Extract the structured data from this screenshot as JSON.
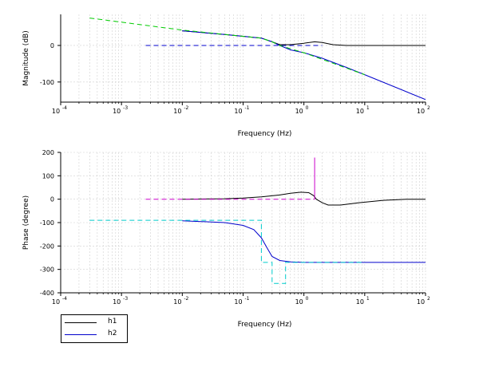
{
  "chart_data": [
    {
      "type": "line",
      "title": "",
      "xlabel": "Frequency (Hz)",
      "ylabel": "Magnitude (dB)",
      "xscale": "log",
      "xlim": [
        0.0001,
        100
      ],
      "ylim": [
        -155,
        85
      ],
      "xticks": [
        {
          "base": "10",
          "exp": "-4"
        },
        {
          "base": "10",
          "exp": "-3"
        },
        {
          "base": "10",
          "exp": "-2"
        },
        {
          "base": "10",
          "exp": "-1"
        },
        {
          "base": "10",
          "exp": "0"
        },
        {
          "base": "10",
          "exp": "1"
        },
        {
          "base": "10",
          "exp": "2"
        }
      ],
      "yticks": [
        "0",
        "-100"
      ],
      "grid": true,
      "series": [
        {
          "name": "h1",
          "color": "#000000",
          "style": "solid",
          "x": [
            0.01,
            0.05,
            0.1,
            0.15,
            0.2,
            0.3,
            0.4,
            0.6,
            1.0,
            1.5,
            2.0,
            3.0,
            5.0,
            10,
            100
          ],
          "y": [
            40,
            30,
            25,
            22,
            20,
            10,
            2,
            2,
            6,
            10,
            8,
            2,
            0,
            0,
            0
          ]
        },
        {
          "name": "h2",
          "color": "#0000cc",
          "style": "solid",
          "x": [
            0.01,
            0.05,
            0.1,
            0.15,
            0.2,
            0.3,
            0.4,
            0.6,
            1.0,
            2.0,
            5.0,
            10,
            100
          ],
          "y": [
            40,
            30,
            25,
            22,
            20,
            10,
            0,
            -12,
            -20,
            -35,
            -60,
            -80,
            -148
          ]
        },
        {
          "name": "",
          "color": "#00cc00",
          "style": "dashed",
          "x": [
            0.0003,
            0.01,
            0.1,
            0.2,
            0.3,
            0.4,
            1.0,
            10
          ],
          "y": [
            75,
            42,
            25,
            20,
            10,
            0,
            -20,
            -80
          ]
        },
        {
          "name": "",
          "color": "#0000cc",
          "style": "dashed",
          "x": [
            0.0025,
            2.0
          ],
          "y": [
            0,
            0
          ]
        }
      ]
    },
    {
      "type": "line",
      "title": "",
      "xlabel": "Frequency (Hz)",
      "ylabel": "Phase (degree)",
      "xscale": "log",
      "xlim": [
        0.0001,
        100
      ],
      "ylim": [
        -400,
        200
      ],
      "xticks": [
        {
          "base": "10",
          "exp": "-4"
        },
        {
          "base": "10",
          "exp": "-3"
        },
        {
          "base": "10",
          "exp": "-2"
        },
        {
          "base": "10",
          "exp": "-1"
        },
        {
          "base": "10",
          "exp": "0"
        },
        {
          "base": "10",
          "exp": "1"
        },
        {
          "base": "10",
          "exp": "2"
        }
      ],
      "yticks": [
        "200",
        "100",
        "0",
        "-100",
        "-200",
        "-300",
        "-400"
      ],
      "grid": true,
      "series": [
        {
          "name": "h1",
          "color": "#000000",
          "style": "solid",
          "x": [
            0.01,
            0.05,
            0.1,
            0.2,
            0.4,
            0.6,
            0.9,
            1.2,
            1.45,
            1.6,
            2.0,
            2.5,
            4,
            8,
            20,
            50,
            100
          ],
          "y": [
            0,
            2,
            5,
            10,
            18,
            25,
            30,
            28,
            15,
            0,
            -15,
            -25,
            -25,
            -15,
            -5,
            0,
            0
          ]
        },
        {
          "name": "h2",
          "color": "#0000cc",
          "style": "solid",
          "x": [
            0.01,
            0.05,
            0.1,
            0.15,
            0.2,
            0.25,
            0.3,
            0.4,
            0.6,
            1.0,
            2.0,
            10,
            100
          ],
          "y": [
            -92,
            -100,
            -112,
            -130,
            -165,
            -210,
            -245,
            -262,
            -268,
            -270,
            -270,
            -270,
            -270
          ]
        },
        {
          "name": "",
          "color": "#cc00cc",
          "style": "dashed",
          "x": [
            0.0025,
            1.5
          ],
          "y": [
            0,
            0
          ]
        },
        {
          "name": "",
          "color": "#cc00cc",
          "style": "solid",
          "x": [
            1.5,
            1.5
          ],
          "y": [
            0,
            178
          ]
        },
        {
          "name": "",
          "color": "#00cccc",
          "style": "dashed",
          "x": [
            0.0003,
            0.2,
            0.2,
            0.3,
            0.3,
            0.5,
            0.5,
            10
          ],
          "y": [
            -90,
            -90,
            -270,
            -270,
            -360,
            -360,
            -270,
            -270
          ]
        }
      ]
    }
  ],
  "legend": {
    "placement": "bottom-left",
    "entries": [
      {
        "label": "h1",
        "color": "#000000"
      },
      {
        "label": "h2",
        "color": "#0000cc"
      }
    ]
  }
}
